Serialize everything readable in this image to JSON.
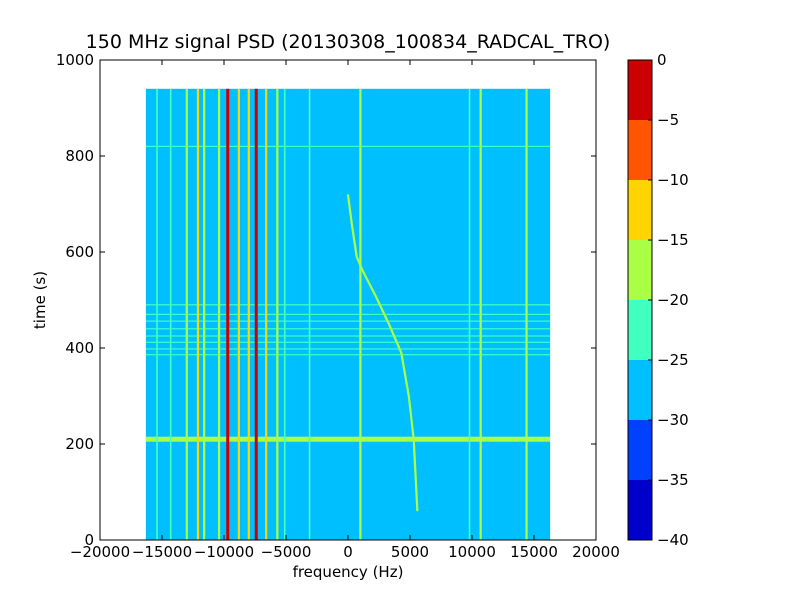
{
  "chart_data": {
    "type": "heatmap",
    "title": "150 MHz signal PSD (20130308_100834_RADCAL_TRO)",
    "xlabel": "frequency (Hz)",
    "ylabel": "time (s)",
    "xlim": [
      -20000,
      20000
    ],
    "ylim": [
      0,
      1000
    ],
    "x_ticks": [
      -20000,
      -15000,
      -10000,
      -5000,
      0,
      5000,
      10000,
      15000,
      20000
    ],
    "y_ticks": [
      0,
      200,
      400,
      600,
      800,
      1000
    ],
    "data_extent": {
      "x": [
        -16300,
        16300
      ],
      "y": [
        0,
        940
      ]
    },
    "background_level": -27.5,
    "colormap": "jet",
    "colorbar": {
      "ticks": [
        0,
        -5,
        -10,
        -15,
        -20,
        -25,
        -30,
        -35,
        -40
      ],
      "levels": [
        {
          "range": [
            -40,
            -35
          ],
          "color": "#0000cc"
        },
        {
          "range": [
            -35,
            -30
          ],
          "color": "#0040ff"
        },
        {
          "range": [
            -30,
            -25
          ],
          "color": "#00bfff"
        },
        {
          "range": [
            -25,
            -20
          ],
          "color": "#40ffbf"
        },
        {
          "range": [
            -20,
            -15
          ],
          "color": "#aaff44"
        },
        {
          "range": [
            -15,
            -10
          ],
          "color": "#ffd400"
        },
        {
          "range": [
            -10,
            -5
          ],
          "color": "#ff5500"
        },
        {
          "range": [
            -5,
            0
          ],
          "color": "#cc0000"
        }
      ]
    },
    "vertical_lines": [
      {
        "freq": -15400,
        "level": -22.5
      },
      {
        "freq": -14300,
        "level": -22.5
      },
      {
        "freq": -13000,
        "level": -17.5
      },
      {
        "freq": -12100,
        "level": -12.5
      },
      {
        "freq": -11600,
        "level": -17.5
      },
      {
        "freq": -10400,
        "level": -17.5
      },
      {
        "freq": -9700,
        "level": -2.5
      },
      {
        "freq": -8800,
        "level": -12.5
      },
      {
        "freq": -8000,
        "level": -12.5
      },
      {
        "freq": -7400,
        "level": -2.5
      },
      {
        "freq": -6600,
        "level": -12.5
      },
      {
        "freq": -5700,
        "level": -17.5
      },
      {
        "freq": -5100,
        "level": -22.5
      },
      {
        "freq": -3100,
        "level": -22.5
      },
      {
        "freq": 1000,
        "level": -17.5
      },
      {
        "freq": 9800,
        "level": -22.5
      },
      {
        "freq": 10700,
        "level": -17.5
      },
      {
        "freq": 14400,
        "level": -17.5
      }
    ],
    "horizontal_lines": [
      {
        "time": 210,
        "level": -17.5
      },
      {
        "time": 386,
        "level": -22.5
      },
      {
        "time": 398,
        "level": -22.5
      },
      {
        "time": 412,
        "level": -22.5
      },
      {
        "time": 425,
        "level": -22.5
      },
      {
        "time": 440,
        "level": -22.5
      },
      {
        "time": 456,
        "level": -22.5
      },
      {
        "time": 470,
        "level": -22.5
      },
      {
        "time": 490,
        "level": -22.5
      },
      {
        "time": 820,
        "level": -22.5
      }
    ],
    "drifting_signal": {
      "level": -17.5,
      "points": [
        [
          0,
          720
        ],
        [
          300,
          660
        ],
        [
          700,
          590
        ],
        [
          1200,
          560
        ],
        [
          2200,
          510
        ],
        [
          3300,
          450
        ],
        [
          4300,
          390
        ],
        [
          4900,
          300
        ],
        [
          5300,
          210
        ],
        [
          5600,
          60
        ]
      ]
    }
  }
}
